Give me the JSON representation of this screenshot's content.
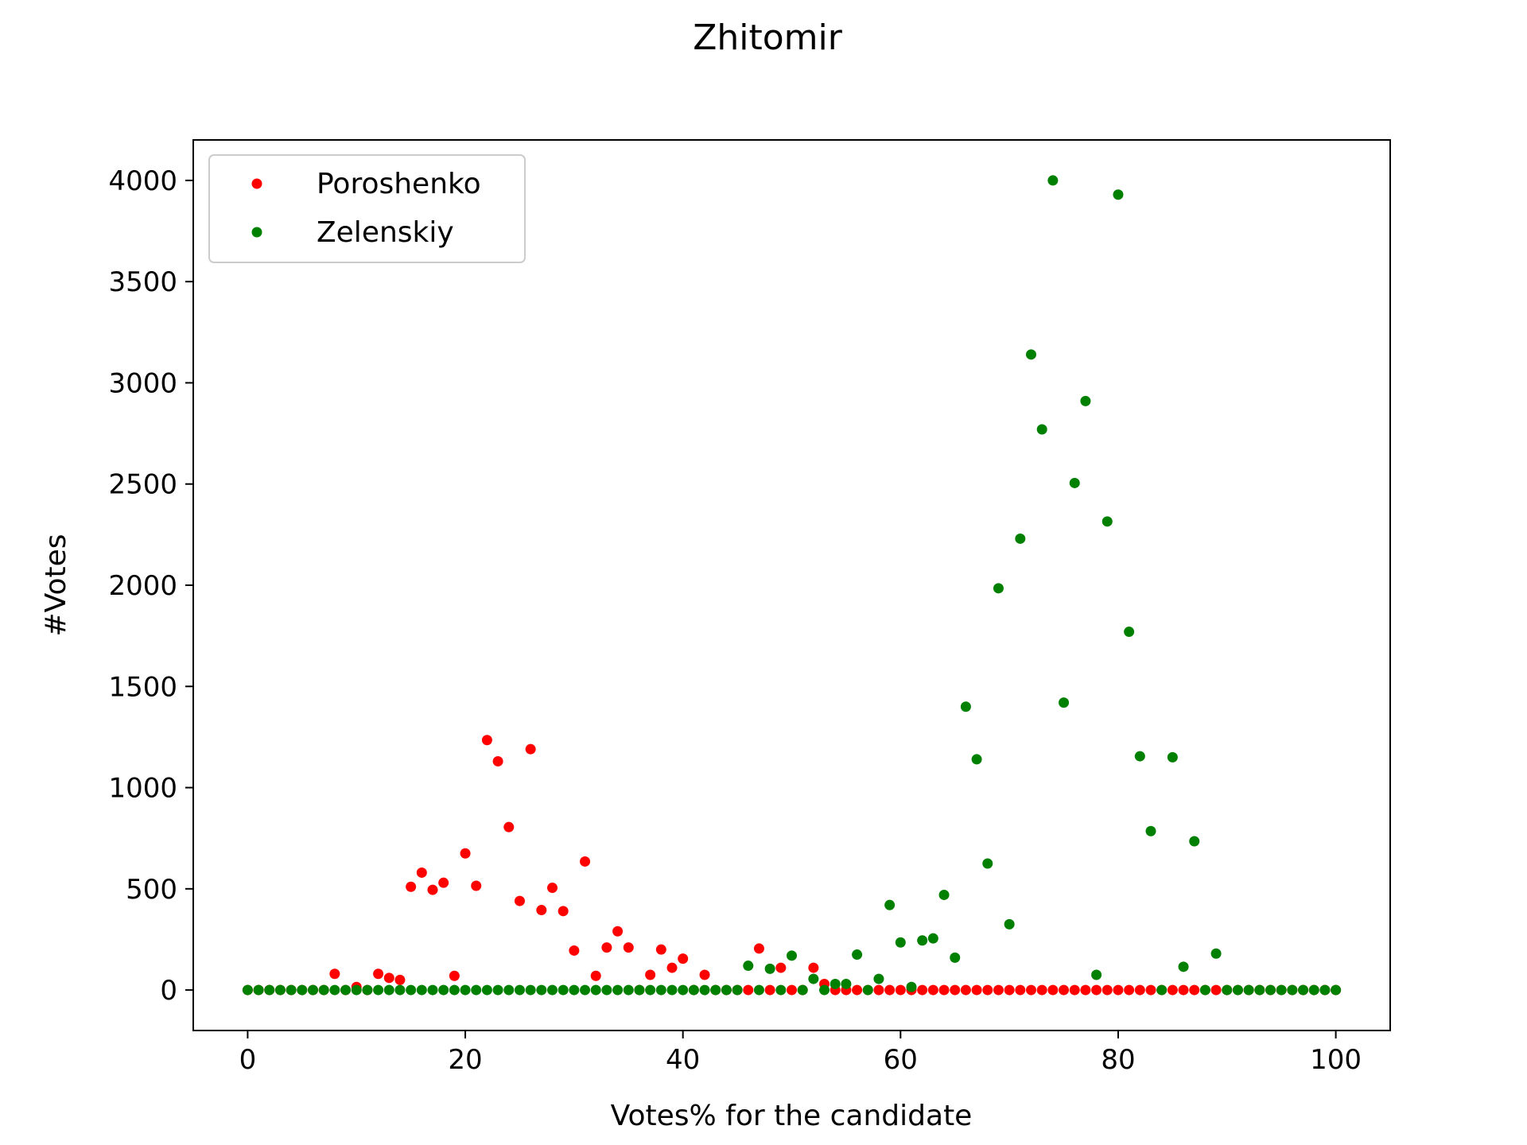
{
  "chart_data": {
    "type": "scatter",
    "title": "Zhitomir",
    "xlabel": "Votes% for the candidate",
    "ylabel": "#Votes",
    "xlim": [
      -5,
      105
    ],
    "ylim": [
      -200,
      4200
    ],
    "xticks": [
      0,
      20,
      40,
      60,
      80,
      100
    ],
    "yticks": [
      0,
      500,
      1000,
      1500,
      2000,
      2500,
      3000,
      3500,
      4000
    ],
    "grid": false,
    "legend": "top-left",
    "series": [
      {
        "name": "Poroshenko",
        "color": "#ff0000",
        "x": [
          0,
          1,
          2,
          3,
          4,
          5,
          6,
          7,
          8,
          9,
          10,
          11,
          12,
          13,
          14,
          15,
          16,
          17,
          18,
          19,
          20,
          21,
          22,
          23,
          24,
          25,
          26,
          27,
          28,
          29,
          30,
          31,
          32,
          33,
          34,
          35,
          36,
          37,
          38,
          39,
          40,
          41,
          42,
          43,
          44,
          45,
          46,
          47,
          48,
          49,
          50,
          51,
          52,
          53,
          54,
          55,
          56,
          57,
          58,
          59,
          60,
          61,
          62,
          63,
          64,
          65,
          66,
          67,
          68,
          69,
          70,
          71,
          72,
          73,
          74,
          75,
          76,
          77,
          78,
          79,
          80,
          81,
          82,
          83,
          84,
          85,
          86,
          87,
          88,
          89,
          90,
          91,
          92,
          93,
          94,
          95,
          96,
          97,
          98,
          99,
          100
        ],
        "y": [
          0,
          0,
          0,
          0,
          0,
          0,
          0,
          0,
          80,
          0,
          15,
          0,
          80,
          60,
          50,
          510,
          580,
          495,
          530,
          70,
          675,
          515,
          1235,
          1130,
          805,
          440,
          1190,
          395,
          505,
          390,
          195,
          635,
          70,
          210,
          290,
          210,
          0,
          75,
          200,
          110,
          155,
          0,
          75,
          0,
          0,
          0,
          0,
          205,
          0,
          110,
          0,
          0,
          110,
          30,
          0,
          0,
          0,
          0,
          0,
          0,
          0,
          0,
          0,
          0,
          0,
          0,
          0,
          0,
          0,
          0,
          0,
          0,
          0,
          0,
          0,
          0,
          0,
          0,
          0,
          0,
          0,
          0,
          0,
          0,
          0,
          0,
          0,
          0,
          0,
          0,
          0,
          0,
          0,
          0,
          0,
          0,
          0,
          0,
          0,
          0,
          0
        ]
      },
      {
        "name": "Zelenskiy",
        "color": "#008000",
        "x": [
          0,
          1,
          2,
          3,
          4,
          5,
          6,
          7,
          8,
          9,
          10,
          11,
          12,
          13,
          14,
          15,
          16,
          17,
          18,
          19,
          20,
          21,
          22,
          23,
          24,
          25,
          26,
          27,
          28,
          29,
          30,
          31,
          32,
          33,
          34,
          35,
          36,
          37,
          38,
          39,
          40,
          41,
          42,
          43,
          44,
          45,
          46,
          47,
          48,
          49,
          50,
          51,
          52,
          53,
          54,
          55,
          56,
          57,
          58,
          59,
          60,
          61,
          62,
          63,
          64,
          65,
          66,
          67,
          68,
          69,
          70,
          71,
          72,
          73,
          74,
          75,
          76,
          77,
          78,
          79,
          80,
          81,
          82,
          83,
          84,
          85,
          86,
          87,
          88,
          89,
          90,
          91,
          92,
          93,
          94,
          95,
          96,
          97,
          98,
          99,
          100
        ],
        "y": [
          0,
          0,
          0,
          0,
          0,
          0,
          0,
          0,
          0,
          0,
          0,
          0,
          0,
          0,
          0,
          0,
          0,
          0,
          0,
          0,
          0,
          0,
          0,
          0,
          0,
          0,
          0,
          0,
          0,
          0,
          0,
          0,
          0,
          0,
          0,
          0,
          0,
          0,
          0,
          0,
          0,
          0,
          0,
          0,
          0,
          0,
          120,
          0,
          105,
          0,
          170,
          0,
          55,
          0,
          30,
          30,
          175,
          0,
          55,
          420,
          235,
          15,
          245,
          255,
          470,
          160,
          1400,
          1140,
          625,
          1985,
          325,
          2230,
          3140,
          2770,
          4000,
          1420,
          2505,
          2910,
          75,
          2315,
          3930,
          1770,
          1155,
          785,
          0,
          1150,
          115,
          735,
          0,
          180,
          0,
          0,
          0,
          0,
          0,
          0,
          0,
          0,
          0,
          0,
          0
        ]
      }
    ]
  }
}
